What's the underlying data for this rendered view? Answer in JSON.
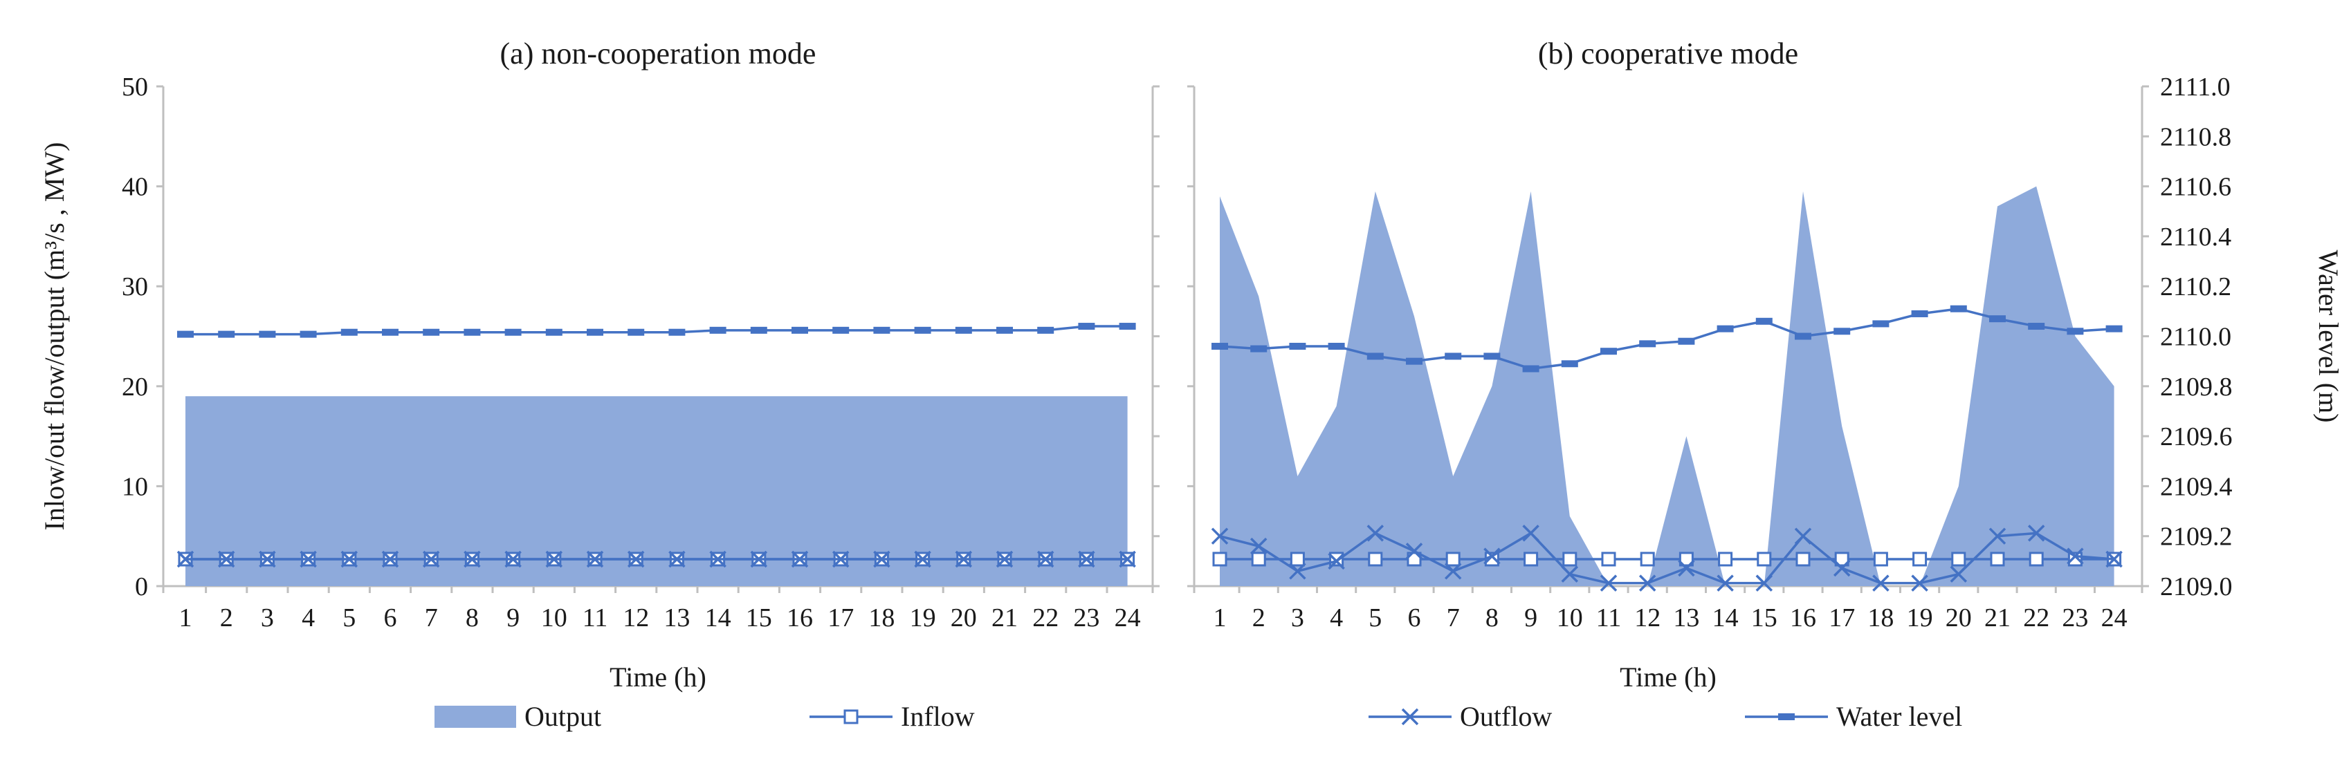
{
  "colors": {
    "area": "#8eaadb",
    "line": "#4472c4",
    "axis": "#bfbfbf"
  },
  "chart_data": [
    {
      "type": "area",
      "title": "(a) non-cooperation mode",
      "xlabel": "Time (h)",
      "ylabel": "Inlow/out flow/output  (m³/s ,  MW)",
      "ylim": [
        0,
        50
      ],
      "yticks": [
        0,
        10,
        20,
        30,
        40,
        50
      ],
      "categories": [
        "1",
        "2",
        "3",
        "4",
        "5",
        "6",
        "7",
        "8",
        "9",
        "10",
        "11",
        "12",
        "13",
        "14",
        "15",
        "16",
        "17",
        "18",
        "19",
        "20",
        "21",
        "22",
        "23",
        "24"
      ],
      "series": [
        {
          "name": "Output",
          "type": "area",
          "values": [
            19,
            19,
            19,
            19,
            19,
            19,
            19,
            19,
            19,
            19,
            19,
            19,
            19,
            19,
            19,
            19,
            19,
            19,
            19,
            19,
            19,
            19,
            19,
            19
          ]
        },
        {
          "name": "Inflow",
          "type": "line",
          "marker": "square-open",
          "values": [
            2.7,
            2.7,
            2.7,
            2.7,
            2.7,
            2.7,
            2.7,
            2.7,
            2.7,
            2.7,
            2.7,
            2.7,
            2.7,
            2.7,
            2.7,
            2.7,
            2.7,
            2.7,
            2.7,
            2.7,
            2.7,
            2.7,
            2.7,
            2.7
          ]
        },
        {
          "name": "Outflow",
          "type": "line",
          "marker": "x",
          "values": [
            2.7,
            2.7,
            2.7,
            2.7,
            2.7,
            2.7,
            2.7,
            2.7,
            2.7,
            2.7,
            2.7,
            2.7,
            2.7,
            2.7,
            2.7,
            2.7,
            2.7,
            2.7,
            2.7,
            2.7,
            2.7,
            2.7,
            2.7,
            2.7
          ]
        },
        {
          "name": "Water level",
          "type": "line",
          "marker": "dash",
          "values": [
            25.2,
            25.2,
            25.2,
            25.2,
            25.4,
            25.4,
            25.4,
            25.4,
            25.4,
            25.4,
            25.4,
            25.4,
            25.4,
            25.6,
            25.6,
            25.6,
            25.6,
            25.6,
            25.6,
            25.6,
            25.6,
            25.6,
            26.0,
            26.0
          ]
        }
      ],
      "legend": "bottom"
    },
    {
      "type": "area",
      "title": "(b) cooperative mode",
      "xlabel": "Time (h)",
      "ylabel_right": "Water level  (m)",
      "ylim": [
        0,
        50
      ],
      "y2lim": [
        2109.0,
        2111.0
      ],
      "y2ticks": [
        "2109.0",
        "2109.2",
        "2109.4",
        "2109.6",
        "2109.8",
        "2110.0",
        "2110.2",
        "2110.4",
        "2110.6",
        "2110.8",
        "2111.0"
      ],
      "categories": [
        "1",
        "2",
        "3",
        "4",
        "5",
        "6",
        "7",
        "8",
        "9",
        "10",
        "11",
        "12",
        "13",
        "14",
        "15",
        "16",
        "17",
        "18",
        "19",
        "20",
        "21",
        "22",
        "23",
        "24"
      ],
      "series": [
        {
          "name": "Output",
          "type": "area",
          "values": [
            39,
            29,
            11,
            18,
            39.5,
            27,
            11,
            20,
            39.5,
            7,
            0,
            0,
            15,
            0,
            0,
            39.5,
            16,
            0,
            0,
            10,
            38,
            40,
            25,
            20
          ]
        },
        {
          "name": "Inflow",
          "type": "line",
          "marker": "square-open",
          "values": [
            2.7,
            2.7,
            2.7,
            2.7,
            2.7,
            2.7,
            2.7,
            2.7,
            2.7,
            2.7,
            2.7,
            2.7,
            2.7,
            2.7,
            2.7,
            2.7,
            2.7,
            2.7,
            2.7,
            2.7,
            2.7,
            2.7,
            2.7,
            2.7
          ]
        },
        {
          "name": "Outflow",
          "type": "line",
          "marker": "x",
          "values": [
            5,
            4,
            1.5,
            2.5,
            5.3,
            3.5,
            1.5,
            3,
            5.3,
            1.2,
            0.3,
            0.3,
            1.8,
            0.3,
            0.3,
            5,
            1.8,
            0.3,
            0.3,
            1.2,
            5,
            5.3,
            3,
            2.7
          ]
        },
        {
          "name": "Water level",
          "type": "line",
          "marker": "dash",
          "axis": "right",
          "values": [
            2109.96,
            2109.95,
            2109.96,
            2109.96,
            2109.92,
            2109.9,
            2109.92,
            2109.92,
            2109.87,
            2109.89,
            2109.94,
            2109.97,
            2109.98,
            2110.03,
            2110.06,
            2110.0,
            2110.02,
            2110.05,
            2110.09,
            2110.11,
            2110.07,
            2110.04,
            2110.02,
            2110.03
          ]
        }
      ],
      "legend": "bottom"
    }
  ]
}
